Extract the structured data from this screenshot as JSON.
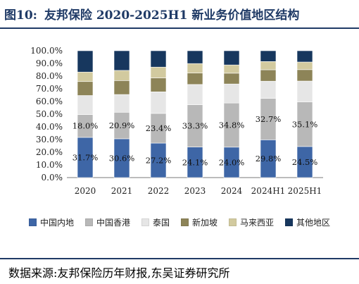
{
  "title_label": "图10:",
  "title_text": "友邦保险 2020-2025H1 新业务价值地区结构",
  "source_note": "数据来源:友邦保险历年财报,东吴证券研究所",
  "colors": {
    "title": "#1f3a66",
    "axis": "#666666",
    "background": "#ffffff"
  },
  "chart_data": {
    "type": "bar",
    "stacked": true,
    "percent": true,
    "categories": [
      "2020",
      "2021",
      "2022",
      "2023",
      "2024",
      "2024H1",
      "2025H1"
    ],
    "ylim": [
      0,
      100
    ],
    "yticks": [
      "0.0%",
      "10.0%",
      "20.0%",
      "30.0%",
      "40.0%",
      "50.0%",
      "60.0%",
      "70.0%",
      "80.0%",
      "90.0%",
      "100.0%"
    ],
    "grid": false,
    "legend_position": "bottom",
    "series": [
      {
        "name": "中国内地",
        "color": "#3e66a6",
        "values": [
          31.7,
          30.6,
          27.2,
          24.1,
          24.0,
          29.8,
          24.5
        ],
        "labels": [
          "31.7%",
          "30.6%",
          "27.2%",
          "24.1%",
          "24.0%",
          "29.8%",
          "24.5%"
        ]
      },
      {
        "name": "中国香港",
        "color": "#b8b8b8",
        "values": [
          18.0,
          20.9,
          23.4,
          33.3,
          34.8,
          32.7,
          35.1
        ],
        "labels": [
          "18.0%",
          "20.9%",
          "23.4%",
          "33.3%",
          "34.8%",
          "32.7%",
          "35.1%"
        ]
      },
      {
        "name": "泰国",
        "color": "#e6e6e6",
        "values": [
          15.0,
          14.0,
          17.0,
          16.0,
          15.0,
          13.5,
          16.5
        ]
      },
      {
        "name": "新加坡",
        "color": "#8d8458",
        "values": [
          11.0,
          11.0,
          11.0,
          9.0,
          8.5,
          9.0,
          9.0
        ]
      },
      {
        "name": "马来西亚",
        "color": "#d2ca9f",
        "values": [
          7.5,
          8.0,
          8.5,
          7.5,
          6.5,
          6.5,
          6.0
        ]
      },
      {
        "name": "其他地区",
        "color": "#17375e",
        "values": [
          16.8,
          15.5,
          12.9,
          10.1,
          11.2,
          8.5,
          8.9
        ]
      }
    ]
  }
}
